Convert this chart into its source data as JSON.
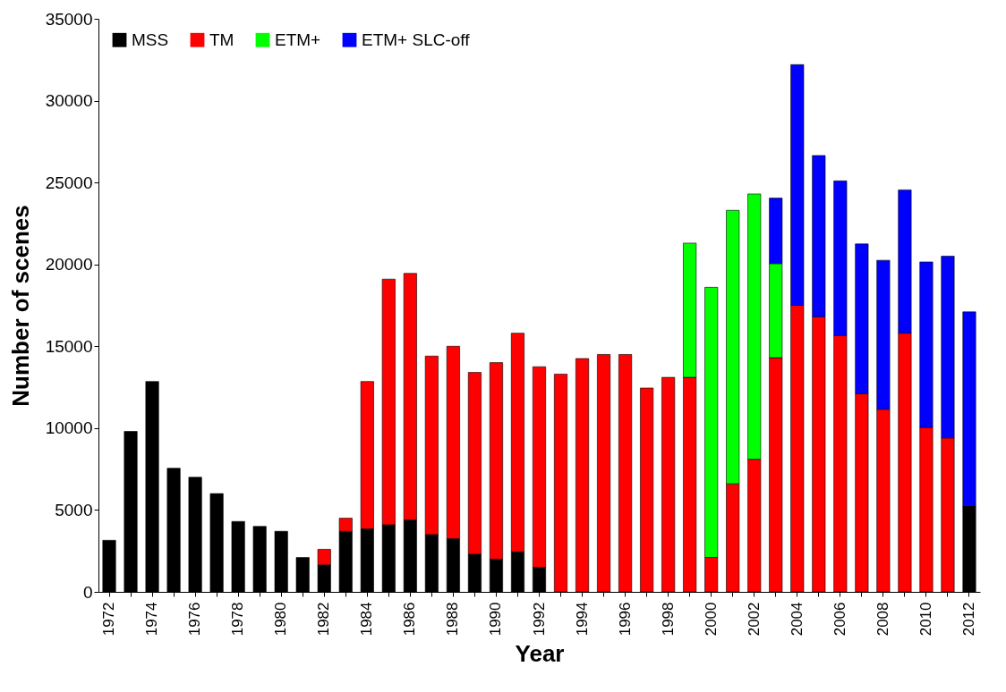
{
  "chart_data": {
    "type": "bar",
    "stacked": true,
    "xlabel": "Year",
    "ylabel": "Number of scenes",
    "categories": [
      "1972",
      null,
      "1974",
      null,
      "1976",
      null,
      "1978",
      null,
      "1980",
      null,
      "1982",
      null,
      "1984",
      null,
      "1986",
      null,
      "1988",
      null,
      "1990",
      null,
      "1992",
      null,
      "1994",
      null,
      "1996",
      null,
      "1998",
      null,
      "2000",
      null,
      "2002",
      null,
      "2004",
      null,
      "2006",
      null,
      "2008",
      null,
      "2010",
      null,
      "2012"
    ],
    "series": [
      {
        "name": "MSS",
        "color": "#000000",
        "values": [
          3150,
          9800,
          12850,
          7550,
          7000,
          6000,
          4300,
          4000,
          3700,
          2100,
          1650,
          3700,
          3850,
          4100,
          4400,
          3500,
          3250,
          2300,
          2000,
          2450,
          1500,
          null,
          null,
          null,
          null,
          null,
          null,
          null,
          null,
          null,
          null,
          null,
          null,
          null,
          null,
          null,
          null,
          null,
          null,
          null,
          5250
        ]
      },
      {
        "name": "TM",
        "color": "#ff0000",
        "values": [
          null,
          null,
          null,
          null,
          null,
          null,
          null,
          null,
          null,
          null,
          950,
          800,
          9000,
          15000,
          15050,
          10900,
          11750,
          11100,
          12000,
          13350,
          12250,
          13300,
          14250,
          14500,
          14500,
          12450,
          13100,
          13100,
          2100,
          6600,
          8100,
          14300,
          17500,
          16800,
          15650,
          12100,
          11150,
          15800,
          10050,
          9400,
          null
        ]
      },
      {
        "name": "ETM+",
        "color": "#00ff00",
        "values": [
          null,
          null,
          null,
          null,
          null,
          null,
          null,
          null,
          null,
          null,
          null,
          null,
          null,
          null,
          null,
          null,
          null,
          null,
          null,
          null,
          null,
          null,
          null,
          null,
          null,
          null,
          null,
          8200,
          16500,
          16700,
          16200,
          5750,
          null,
          null,
          null,
          null,
          null,
          null,
          null,
          null,
          null
        ]
      },
      {
        "name": "ETM+ SLC-off",
        "color": "#0000ff",
        "values": [
          null,
          null,
          null,
          null,
          null,
          null,
          null,
          null,
          null,
          null,
          null,
          null,
          null,
          null,
          null,
          null,
          null,
          null,
          null,
          null,
          null,
          null,
          null,
          null,
          null,
          null,
          null,
          null,
          null,
          null,
          null,
          4000,
          14700,
          9850,
          9450,
          9150,
          9100,
          8750,
          10100,
          11100,
          11850
        ]
      }
    ],
    "ylim": [
      0,
      35000
    ],
    "yticks": [
      0,
      5000,
      10000,
      15000,
      20000,
      25000,
      30000,
      35000
    ],
    "grid": false,
    "legend": "top left"
  }
}
